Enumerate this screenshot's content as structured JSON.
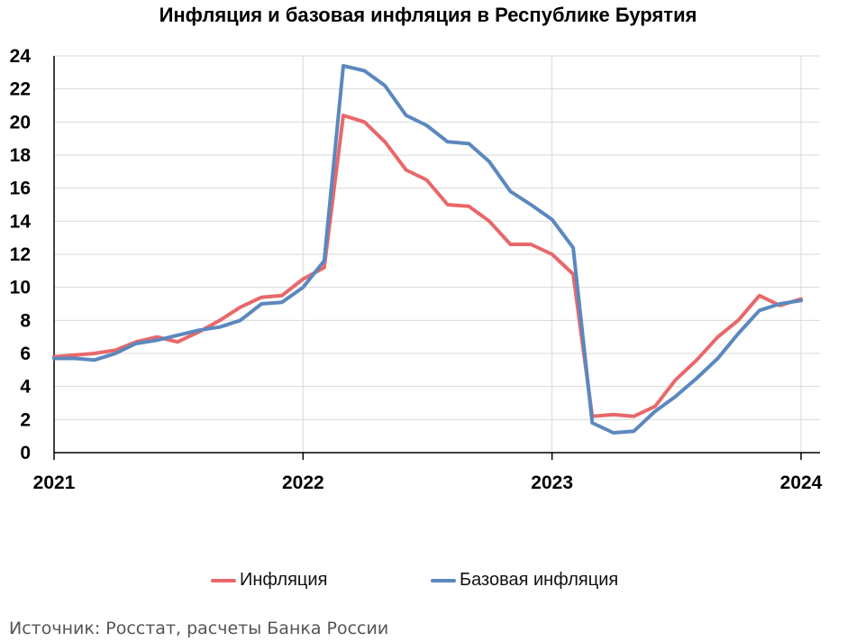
{
  "chart_data": {
    "type": "line",
    "title": "Инфляция и базовая инфляция в Республике Бурятия",
    "xlabel": "",
    "ylabel": "",
    "ylim": [
      0,
      24
    ],
    "yticks": [
      0,
      2,
      4,
      6,
      8,
      10,
      12,
      14,
      16,
      18,
      20,
      22,
      24
    ],
    "xticks": [
      "2021",
      "2022",
      "2023",
      "2024"
    ],
    "grid": true,
    "legend_position": "bottom",
    "x": [
      "2021-01",
      "2021-02",
      "2021-03",
      "2021-04",
      "2021-05",
      "2021-06",
      "2021-07",
      "2021-08",
      "2021-09",
      "2021-10",
      "2021-11",
      "2021-12",
      "2022-01",
      "2022-02",
      "2022-03",
      "2022-04",
      "2022-05",
      "2022-06",
      "2022-07",
      "2022-08",
      "2022-09",
      "2022-10",
      "2022-11",
      "2022-12",
      "2023-01",
      "2023-02",
      "2023-03",
      "2023-04",
      "2023-05",
      "2023-06",
      "2023-07",
      "2023-08",
      "2023-09",
      "2023-10",
      "2023-11",
      "2023-12",
      "2024-01"
    ],
    "series": [
      {
        "name": "Инфляция",
        "color": "#e8686a",
        "values": [
          5.8,
          5.9,
          6.0,
          6.2,
          6.7,
          7.0,
          6.7,
          7.3,
          8.0,
          8.8,
          9.4,
          9.5,
          10.5,
          11.2,
          20.4,
          20.0,
          18.8,
          17.1,
          16.5,
          15.0,
          14.9,
          14.0,
          12.6,
          12.6,
          12.0,
          10.8,
          2.2,
          2.3,
          2.2,
          2.8,
          4.4,
          5.6,
          7.0,
          8.0,
          9.5,
          8.9,
          9.3
        ]
      },
      {
        "name": "Базовая инфляция",
        "color": "#5b88be",
        "values": [
          5.7,
          5.7,
          5.6,
          6.0,
          6.6,
          6.8,
          7.1,
          7.4,
          7.6,
          8.0,
          9.0,
          9.1,
          10.0,
          11.6,
          23.4,
          23.1,
          22.2,
          20.4,
          19.8,
          18.8,
          18.7,
          17.6,
          15.8,
          15.0,
          14.1,
          12.4,
          1.8,
          1.2,
          1.3,
          2.5,
          3.4,
          4.5,
          5.7,
          7.2,
          8.6,
          9.0,
          9.2
        ]
      }
    ]
  },
  "source_note": "Источник: Росстат, расчеты Банка России"
}
